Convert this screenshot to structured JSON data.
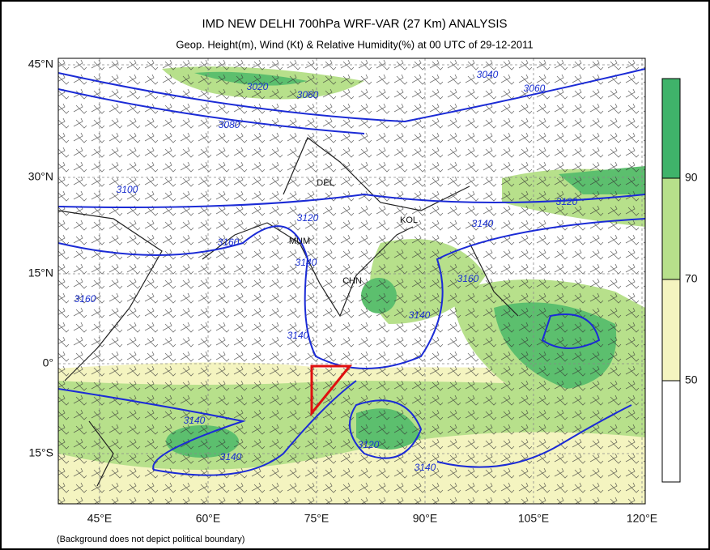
{
  "header": {
    "title": "IMD NEW DELHI 700hPa WRF-VAR (27 Km) ANALYSIS",
    "subtitle": "Geop. Height(m), Wind (Kt) & Relative Humidity(%)  at 00 UTC of 29-12-2011"
  },
  "axes": {
    "lat_labels": [
      "45°N",
      "30°N",
      "15°N",
      "0°",
      "15°S"
    ],
    "lon_labels": [
      "45°E",
      "60°E",
      "75°E",
      "90°E",
      "105°E",
      "120°E"
    ]
  },
  "colorbar": {
    "labels": [
      90,
      70,
      50
    ]
  },
  "places": [
    "DEL",
    "KOL",
    "MUM",
    "CHN"
  ],
  "contour_labels": [
    3020,
    3060,
    3080,
    3040,
    3060,
    3100,
    3120,
    3160,
    3140,
    3160,
    3140,
    3140,
    3120,
    3160,
    3140,
    3140,
    3140,
    3120,
    3140
  ],
  "footnote": "(Background does not depict political boundary)"
}
